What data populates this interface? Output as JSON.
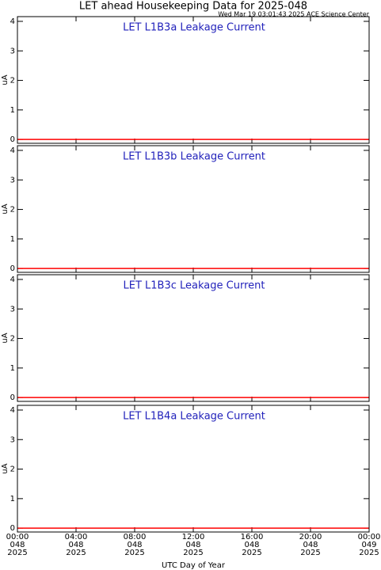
{
  "title": "LET ahead Housekeeping Data for 2025-048",
  "subtitle": "Wed Mar 19 03:01:43 2025 ACE Science Center",
  "chart_data": [
    {
      "type": "line",
      "title": "LET L1B3a Leakage Current",
      "ylabel": "uA",
      "xlim": [
        0,
        24
      ],
      "ylim": [
        -0.13,
        4.16
      ],
      "yticks": [
        0,
        1,
        2,
        3,
        4
      ],
      "x": [
        0,
        24
      ],
      "values": [
        0,
        0
      ],
      "color": "#ff0000"
    },
    {
      "type": "line",
      "title": "LET L1B3b Leakage Current",
      "ylabel": "uA",
      "xlim": [
        0,
        24
      ],
      "ylim": [
        -0.13,
        4.16
      ],
      "yticks": [
        0,
        1,
        2,
        3,
        4
      ],
      "x": [
        0,
        24
      ],
      "values": [
        0,
        0
      ],
      "color": "#ff0000"
    },
    {
      "type": "line",
      "title": "LET L1B3c Leakage Current",
      "ylabel": "uA",
      "xlim": [
        0,
        24
      ],
      "ylim": [
        -0.13,
        4.16
      ],
      "yticks": [
        0,
        1,
        2,
        3,
        4
      ],
      "x": [
        0,
        24
      ],
      "values": [
        0,
        0
      ],
      "color": "#ff0000"
    },
    {
      "type": "line",
      "title": "LET L1B4a Leakage Current",
      "ylabel": "uA",
      "xlabel": "UTC Day of Year",
      "xlim": [
        0,
        24
      ],
      "ylim": [
        -0.13,
        4.16
      ],
      "yticks": [
        0,
        1,
        2,
        3,
        4
      ],
      "x": [
        0,
        24
      ],
      "values": [
        0,
        0
      ],
      "color": "#ff0000",
      "xticks": [
        {
          "value": 0,
          "label": [
            "00:00",
            "048",
            "2025"
          ]
        },
        {
          "value": 4,
          "label": [
            "04:00",
            "048",
            "2025"
          ]
        },
        {
          "value": 8,
          "label": [
            "08:00",
            "048",
            "2025"
          ]
        },
        {
          "value": 12,
          "label": [
            "12:00",
            "048",
            "2025"
          ]
        },
        {
          "value": 16,
          "label": [
            "16:00",
            "048",
            "2025"
          ]
        },
        {
          "value": 20,
          "label": [
            "20:00",
            "048",
            "2025"
          ]
        },
        {
          "value": 24,
          "label": [
            "00:00",
            "049",
            "2025"
          ]
        }
      ]
    }
  ]
}
